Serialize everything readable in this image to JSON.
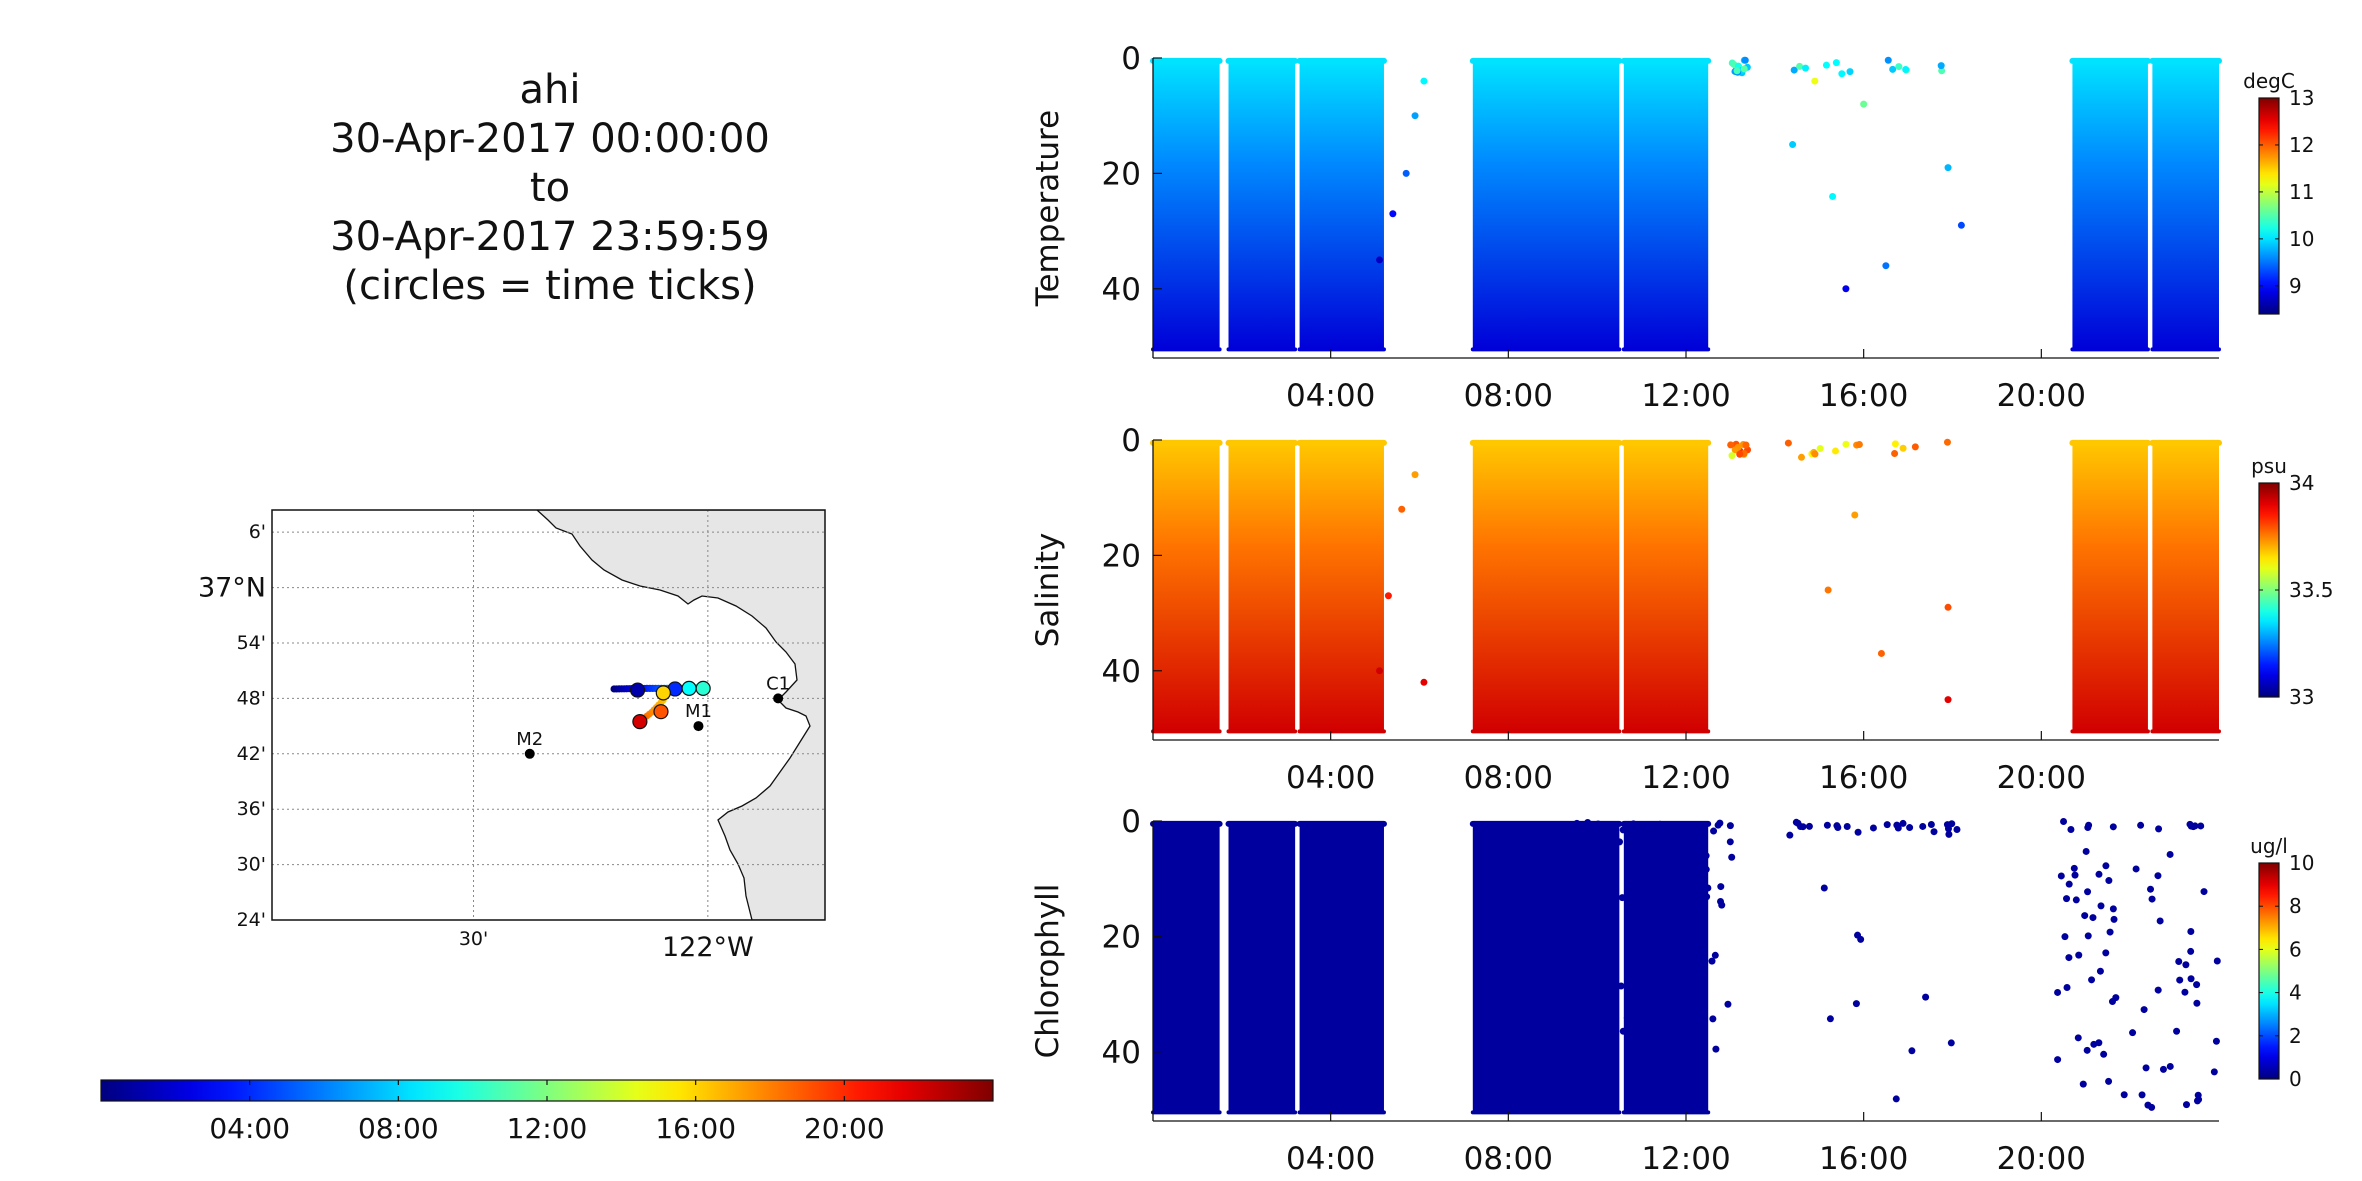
{
  "header": {
    "title_lines": [
      "ahi",
      "30-Apr-2017 00:00:00",
      "to",
      "30-Apr-2017 23:59:59",
      "(circles = time ticks)"
    ]
  },
  "colors": {
    "jet": [
      "#00007f",
      "#0000ff",
      "#007fff",
      "#00ffff",
      "#7fff7f",
      "#ffff00",
      "#ff7f00",
      "#ff0000",
      "#7f0000"
    ],
    "land": "#e6e6e6",
    "grid": "#888888"
  },
  "chart_data": [
    {
      "type": "map",
      "title": "",
      "lat_labels": [
        "6'",
        "37°N",
        "54'",
        "48'",
        "42'",
        "36'",
        "30'",
        "24'"
      ],
      "lat_values": [
        37.1,
        37.0,
        36.9,
        36.8,
        36.7,
        36.6,
        36.5,
        36.4
      ],
      "lon_labels": [
        "30'",
        "122°W"
      ],
      "lon_values": [
        -122.5,
        -122.0
      ],
      "lon_range": [
        -122.93,
        -121.75
      ],
      "lat_range": [
        36.4,
        37.14
      ],
      "stations": [
        {
          "name": "M2",
          "lon": -122.38,
          "lat": 36.7
        },
        {
          "name": "M1",
          "lon": -122.02,
          "lat": 36.75
        },
        {
          "name": "C1",
          "lon": -121.85,
          "lat": 36.8
        }
      ],
      "track_a": {
        "time_range_h": [
          0,
          11
        ],
        "points": [
          [
            -122.2,
            36.817
          ],
          [
            -122.13,
            36.818
          ],
          [
            -122.05,
            36.818
          ],
          [
            -122.01,
            36.82
          ]
        ]
      },
      "track_b": {
        "time_range_h": [
          15,
          19
        ],
        "points": [
          [
            -122.1,
            36.81
          ],
          [
            -122.095,
            36.797
          ],
          [
            -122.12,
            36.775
          ],
          [
            -122.145,
            36.758
          ]
        ]
      },
      "time_tick_circles_h": [
        1,
        4,
        9,
        10,
        16,
        19,
        22
      ]
    },
    {
      "type": "colorbar",
      "orientation": "horizontal",
      "range_h": [
        0,
        24
      ],
      "tick_labels": [
        "04:00",
        "08:00",
        "12:00",
        "16:00",
        "20:00"
      ],
      "tick_values_h": [
        4,
        8,
        12,
        16,
        20
      ]
    },
    {
      "type": "scatter",
      "ylabel": "Temperature",
      "units": "degC",
      "ylim": [
        0,
        52
      ],
      "y_reversed": true,
      "y_ticks": [
        0,
        20,
        40
      ],
      "xlim_h": [
        0,
        24
      ],
      "x_ticks_h": [
        4,
        8,
        12,
        16,
        20
      ],
      "x_tick_labels": [
        "04:00",
        "08:00",
        "12:00",
        "16:00",
        "20:00"
      ],
      "clim": [
        8.4,
        13
      ],
      "cbar_ticks": [
        9,
        10,
        11,
        12,
        13
      ],
      "profile_segments_h": [
        [
          0,
          1.5
        ],
        [
          1.7,
          3.2
        ],
        [
          3.3,
          5.2
        ],
        [
          7.2,
          10.5
        ],
        [
          10.6,
          12.5
        ],
        [
          20.7,
          22.4
        ],
        [
          22.5,
          24
        ]
      ],
      "surface_value": 10.0,
      "deep_value": 8.8,
      "scattered_points_h": [
        [
          5.1,
          35.0,
          8.7
        ],
        [
          5.4,
          27.0,
          9.0
        ],
        [
          5.7,
          20.0,
          9.4
        ],
        [
          5.9,
          10.0,
          9.7
        ],
        [
          6.1,
          4.0,
          10.1
        ],
        [
          14.4,
          15.0,
          9.9
        ],
        [
          14.9,
          4.0,
          11.2
        ],
        [
          15.3,
          24.0,
          10.1
        ],
        [
          15.6,
          40.0,
          8.9
        ],
        [
          16.0,
          8.0,
          10.6
        ],
        [
          16.5,
          36.0,
          9.5
        ],
        [
          17.9,
          19.0,
          9.8
        ],
        [
          18.2,
          29.0,
          9.3
        ]
      ]
    },
    {
      "type": "scatter",
      "ylabel": "Salinity",
      "units": "psu",
      "ylim": [
        0,
        52
      ],
      "y_reversed": true,
      "y_ticks": [
        0,
        20,
        40
      ],
      "xlim_h": [
        0,
        24
      ],
      "x_ticks_h": [
        4,
        8,
        12,
        16,
        20
      ],
      "x_tick_labels": [
        "04:00",
        "08:00",
        "12:00",
        "16:00",
        "20:00"
      ],
      "clim": [
        33.0,
        34.0
      ],
      "cbar_ticks": [
        33,
        33.5,
        34
      ],
      "cbar_tick_labels": [
        "33",
        "33.5",
        "34"
      ],
      "profile_segments_h": [
        [
          0,
          1.5
        ],
        [
          1.7,
          3.2
        ],
        [
          3.3,
          5.2
        ],
        [
          7.2,
          10.5
        ],
        [
          10.6,
          12.5
        ],
        [
          20.7,
          22.4
        ],
        [
          22.5,
          24
        ]
      ],
      "surface_value": 33.68,
      "deep_value": 33.92,
      "scattered_points_h": [
        [
          5.1,
          40.0,
          33.92
        ],
        [
          5.3,
          27.0,
          33.85
        ],
        [
          5.6,
          12.0,
          33.78
        ],
        [
          5.9,
          6.0,
          33.72
        ],
        [
          6.1,
          42.0,
          33.9
        ],
        [
          14.6,
          3.0,
          33.72
        ],
        [
          15.2,
          26.0,
          33.76
        ],
        [
          15.8,
          13.0,
          33.72
        ],
        [
          16.4,
          37.0,
          33.78
        ],
        [
          17.9,
          29.0,
          33.8
        ],
        [
          17.9,
          45.0,
          33.9
        ]
      ]
    },
    {
      "type": "scatter",
      "ylabel": "Chlorophyll",
      "units": "ug/l",
      "ylim": [
        0,
        52
      ],
      "y_reversed": true,
      "y_ticks": [
        0,
        20,
        40
      ],
      "xlim_h": [
        0,
        24
      ],
      "x_ticks_h": [
        4,
        8,
        12,
        16,
        20
      ],
      "x_tick_labels": [
        "04:00",
        "08:00",
        "12:00",
        "16:00",
        "20:00"
      ],
      "clim": [
        0,
        10
      ],
      "cbar_ticks": [
        0,
        2,
        4,
        6,
        8,
        10
      ],
      "profile_segments_h": [
        [
          0,
          1.5
        ],
        [
          1.7,
          3.2
        ],
        [
          3.3,
          5.2
        ],
        [
          7.2,
          10.5
        ],
        [
          10.6,
          12.5
        ]
      ],
      "surface_value": 0.3,
      "deep_value": 0.3,
      "scattered_time_ranges_h": [
        [
          9.5,
          13.1
        ],
        [
          14.3,
          18.2
        ],
        [
          20.3,
          24.0
        ]
      ],
      "scattered_value": 0.3
    }
  ]
}
